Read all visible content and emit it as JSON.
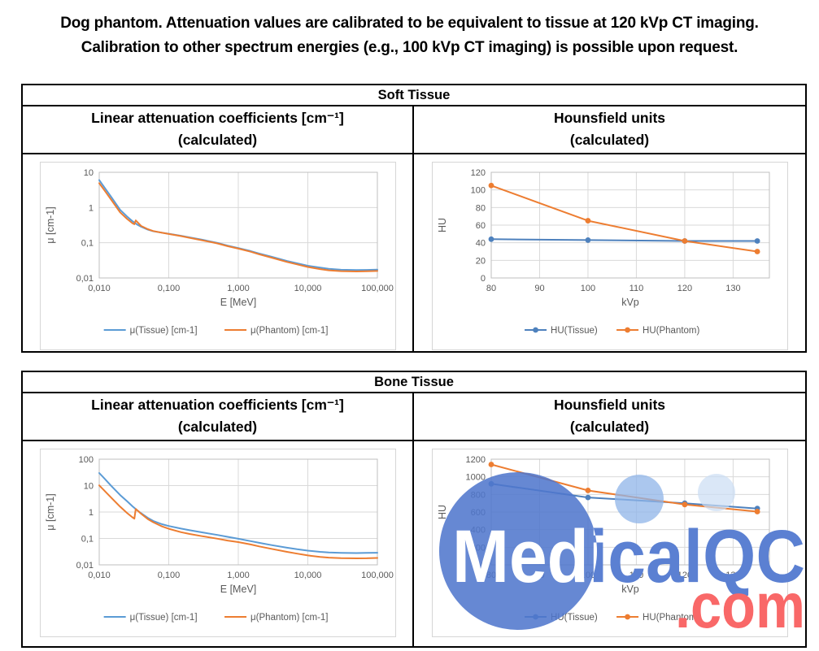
{
  "title": {
    "line1": "Dog phantom. Attenuation values are calibrated to be equivalent to tissue at 120 kVp CT imaging.",
    "line2": "Calibration to other spectrum energies (e.g., 100 kVp CT imaging) is possible upon request."
  },
  "tables": [
    {
      "name": "Soft Tissue",
      "columns": [
        {
          "line1": "Linear attenuation coefficients [cm⁻¹]",
          "line2": "(calculated)"
        },
        {
          "line1": "Hounsfield units",
          "line2": "(calculated)"
        }
      ]
    },
    {
      "name": "Bone Tissue",
      "columns": [
        {
          "line1": "Linear attenuation coefficients [cm⁻¹]",
          "line2": "(calculated)"
        },
        {
          "line1": "Hounsfield units",
          "line2": "(calculated)"
        }
      ]
    }
  ],
  "palette": {
    "grid": "#d9d9d9",
    "axis": "#bfbfbf",
    "tick_text": "#595959"
  },
  "watermark": {
    "text": "MedicalQC",
    "suffix": ".com",
    "text_color": "#5b80d2",
    "suffix_color": "#f96868",
    "big_circle_color": "#4f76cc",
    "medium_circle_color": "#8fb4e8",
    "small_circle_color": "#cbddf4"
  },
  "chart_data": [
    {
      "id": "soft-mu",
      "type": "line",
      "x_scale": "log",
      "y_scale": "log",
      "xlabel": "E [MeV]",
      "ylabel": "μ [cm-1]",
      "xlim": [
        0.01,
        100
      ],
      "ylim": [
        0.01,
        10
      ],
      "x_ticks": [
        {
          "v": 0.01,
          "label": "0,010"
        },
        {
          "v": 0.1,
          "label": "0,100"
        },
        {
          "v": 1,
          "label": "1,000"
        },
        {
          "v": 10,
          "label": "10,000"
        },
        {
          "v": 100,
          "label": "100,000"
        }
      ],
      "y_ticks": [
        {
          "v": 10,
          "label": "10"
        },
        {
          "v": 1,
          "label": "1"
        },
        {
          "v": 0.1,
          "label": "0,1"
        },
        {
          "v": 0.01,
          "label": "0,01"
        }
      ],
      "legend_position": "bottom",
      "grid": true,
      "series": [
        {
          "name": "μ(Tissue) [cm-1]",
          "color": "#5B9BD5",
          "marker": false,
          "points": [
            [
              0.01,
              6.0
            ],
            [
              0.012,
              3.6
            ],
            [
              0.015,
              1.95
            ],
            [
              0.02,
              0.86
            ],
            [
              0.025,
              0.56
            ],
            [
              0.03,
              0.41
            ],
            [
              0.035,
              0.33
            ],
            [
              0.04,
              0.285
            ],
            [
              0.05,
              0.235
            ],
            [
              0.06,
              0.212
            ],
            [
              0.08,
              0.193
            ],
            [
              0.1,
              0.18
            ],
            [
              0.15,
              0.158
            ],
            [
              0.2,
              0.142
            ],
            [
              0.3,
              0.122
            ],
            [
              0.5,
              0.099
            ],
            [
              0.7,
              0.083
            ],
            [
              1.0,
              0.0707
            ],
            [
              1.5,
              0.058
            ],
            [
              2.0,
              0.0494
            ],
            [
              3.0,
              0.04
            ],
            [
              5.0,
              0.0303
            ],
            [
              7.0,
              0.026
            ],
            [
              10,
              0.0222
            ],
            [
              15,
              0.0196
            ],
            [
              20,
              0.0182
            ],
            [
              30,
              0.0171
            ],
            [
              50,
              0.0167
            ],
            [
              70,
              0.0169
            ],
            [
              100,
              0.0172
            ]
          ]
        },
        {
          "name": "μ(Phantom) [cm-1]",
          "color": "#ED7D31",
          "marker": false,
          "points": [
            [
              0.01,
              4.9
            ],
            [
              0.012,
              3.0
            ],
            [
              0.015,
              1.62
            ],
            [
              0.02,
              0.73
            ],
            [
              0.025,
              0.48
            ],
            [
              0.03,
              0.36
            ],
            [
              0.032,
              0.335
            ],
            [
              0.0335,
              0.43
            ],
            [
              0.04,
              0.3
            ],
            [
              0.05,
              0.243
            ],
            [
              0.06,
              0.215
            ],
            [
              0.08,
              0.192
            ],
            [
              0.1,
              0.177
            ],
            [
              0.15,
              0.154
            ],
            [
              0.2,
              0.138
            ],
            [
              0.3,
              0.118
            ],
            [
              0.5,
              0.0955
            ],
            [
              0.7,
              0.08
            ],
            [
              1.0,
              0.068
            ],
            [
              1.5,
              0.0555
            ],
            [
              2.0,
              0.047
            ],
            [
              3.0,
              0.0378
            ],
            [
              5.0,
              0.0285
            ],
            [
              7.0,
              0.0243
            ],
            [
              10,
              0.0205
            ],
            [
              15,
              0.0178
            ],
            [
              20,
              0.0165
            ],
            [
              30,
              0.0156
            ],
            [
              50,
              0.0153
            ],
            [
              70,
              0.0155
            ],
            [
              100,
              0.0158
            ]
          ]
        }
      ]
    },
    {
      "id": "soft-hu",
      "type": "line",
      "x_scale": "linear",
      "y_scale": "linear",
      "xlabel": "kVp",
      "ylabel": "HU",
      "xlim": [
        80,
        137.5
      ],
      "ylim": [
        0,
        120
      ],
      "x_ticks": [
        {
          "v": 80,
          "label": "80"
        },
        {
          "v": 90,
          "label": "90"
        },
        {
          "v": 100,
          "label": "100"
        },
        {
          "v": 110,
          "label": "110"
        },
        {
          "v": 120,
          "label": "120"
        },
        {
          "v": 130,
          "label": "130"
        }
      ],
      "y_ticks": [
        {
          "v": 0,
          "label": "0"
        },
        {
          "v": 20,
          "label": "20"
        },
        {
          "v": 40,
          "label": "40"
        },
        {
          "v": 60,
          "label": "60"
        },
        {
          "v": 80,
          "label": "80"
        },
        {
          "v": 100,
          "label": "100"
        },
        {
          "v": 120,
          "label": "120"
        }
      ],
      "legend_position": "bottom",
      "grid": true,
      "series": [
        {
          "name": "HU(Tissue)",
          "color": "#4E81BD",
          "marker": true,
          "points": [
            [
              80,
              44
            ],
            [
              100,
              43
            ],
            [
              120,
              42
            ],
            [
              135,
              42
            ]
          ]
        },
        {
          "name": "HU(Phantom)",
          "color": "#ED7D31",
          "marker": true,
          "points": [
            [
              80,
              105
            ],
            [
              100,
              65
            ],
            [
              120,
              42
            ],
            [
              135,
              30
            ]
          ]
        }
      ]
    },
    {
      "id": "bone-mu",
      "type": "line",
      "x_scale": "log",
      "y_scale": "log",
      "xlabel": "E [MeV]",
      "ylabel": "μ [cm-1]",
      "xlim": [
        0.01,
        100
      ],
      "ylim": [
        0.01,
        100
      ],
      "x_ticks": [
        {
          "v": 0.01,
          "label": "0,010"
        },
        {
          "v": 0.1,
          "label": "0,100"
        },
        {
          "v": 1,
          "label": "1,000"
        },
        {
          "v": 10,
          "label": "10,000"
        },
        {
          "v": 100,
          "label": "100,000"
        }
      ],
      "y_ticks": [
        {
          "v": 100,
          "label": "100"
        },
        {
          "v": 10,
          "label": "10"
        },
        {
          "v": 1,
          "label": "1"
        },
        {
          "v": 0.1,
          "label": "0,1"
        },
        {
          "v": 0.01,
          "label": "0,01"
        }
      ],
      "legend_position": "bottom",
      "grid": true,
      "series": [
        {
          "name": "μ(Tissue) [cm-1]",
          "color": "#5B9BD5",
          "marker": false,
          "points": [
            [
              0.01,
              30
            ],
            [
              0.012,
              18
            ],
            [
              0.015,
              9.5
            ],
            [
              0.02,
              4.4
            ],
            [
              0.025,
              2.6
            ],
            [
              0.03,
              1.65
            ],
            [
              0.035,
              1.18
            ],
            [
              0.04,
              0.9
            ],
            [
              0.05,
              0.6
            ],
            [
              0.06,
              0.46
            ],
            [
              0.08,
              0.345
            ],
            [
              0.1,
              0.295
            ],
            [
              0.15,
              0.235
            ],
            [
              0.2,
              0.205
            ],
            [
              0.3,
              0.17
            ],
            [
              0.5,
              0.136
            ],
            [
              0.7,
              0.115
            ],
            [
              1.0,
              0.097
            ],
            [
              1.5,
              0.079
            ],
            [
              2.0,
              0.068
            ],
            [
              3.0,
              0.056
            ],
            [
              5.0,
              0.0445
            ],
            [
              7.0,
              0.039
            ],
            [
              10,
              0.0345
            ],
            [
              15,
              0.031
            ],
            [
              20,
              0.0295
            ],
            [
              30,
              0.0285
            ],
            [
              50,
              0.028
            ],
            [
              70,
              0.0283
            ],
            [
              100,
              0.0288
            ]
          ]
        },
        {
          "name": "μ(Phantom) [cm-1]",
          "color": "#ED7D31",
          "marker": false,
          "points": [
            [
              0.01,
              10.2
            ],
            [
              0.012,
              6.2
            ],
            [
              0.015,
              3.4
            ],
            [
              0.02,
              1.6
            ],
            [
              0.025,
              0.93
            ],
            [
              0.03,
              0.63
            ],
            [
              0.032,
              0.56
            ],
            [
              0.0335,
              1.3
            ],
            [
              0.04,
              0.86
            ],
            [
              0.05,
              0.54
            ],
            [
              0.06,
              0.41
            ],
            [
              0.08,
              0.285
            ],
            [
              0.1,
              0.232
            ],
            [
              0.15,
              0.172
            ],
            [
              0.2,
              0.148
            ],
            [
              0.3,
              0.122
            ],
            [
              0.5,
              0.098
            ],
            [
              0.7,
              0.083
            ],
            [
              1.0,
              0.0725
            ],
            [
              1.5,
              0.059
            ],
            [
              2.0,
              0.05
            ],
            [
              3.0,
              0.0405
            ],
            [
              5.0,
              0.031
            ],
            [
              7.0,
              0.0265
            ],
            [
              10,
              0.0228
            ],
            [
              15,
              0.02
            ],
            [
              20,
              0.0188
            ],
            [
              30,
              0.018
            ],
            [
              50,
              0.0176
            ],
            [
              70,
              0.0178
            ],
            [
              100,
              0.0182
            ]
          ]
        }
      ]
    },
    {
      "id": "bone-hu",
      "type": "line",
      "x_scale": "linear",
      "y_scale": "linear",
      "xlabel": "kVp",
      "ylabel": "HU",
      "xlim": [
        80,
        137.5
      ],
      "ylim": [
        0,
        1200
      ],
      "x_ticks": [
        {
          "v": 80,
          "label": "80"
        },
        {
          "v": 90,
          "label": "90"
        },
        {
          "v": 100,
          "label": "100"
        },
        {
          "v": 110,
          "label": "110"
        },
        {
          "v": 120,
          "label": "120"
        },
        {
          "v": 130,
          "label": "130"
        }
      ],
      "y_ticks": [
        {
          "v": 0,
          "label": "0"
        },
        {
          "v": 200,
          "label": "200"
        },
        {
          "v": 400,
          "label": "400"
        },
        {
          "v": 600,
          "label": "600"
        },
        {
          "v": 800,
          "label": "800"
        },
        {
          "v": 1000,
          "label": "1000"
        },
        {
          "v": 1200,
          "label": "1200"
        }
      ],
      "legend_position": "bottom",
      "grid": true,
      "series": [
        {
          "name": "HU(Tissue)",
          "color": "#4E81BD",
          "marker": true,
          "points": [
            [
              80,
              920
            ],
            [
              100,
              765
            ],
            [
              120,
              700
            ],
            [
              135,
              640
            ]
          ]
        },
        {
          "name": "HU(Phantom)",
          "color": "#ED7D31",
          "marker": true,
          "points": [
            [
              80,
              1140
            ],
            [
              100,
              845
            ],
            [
              120,
              685
            ],
            [
              135,
              605
            ]
          ]
        }
      ]
    }
  ]
}
